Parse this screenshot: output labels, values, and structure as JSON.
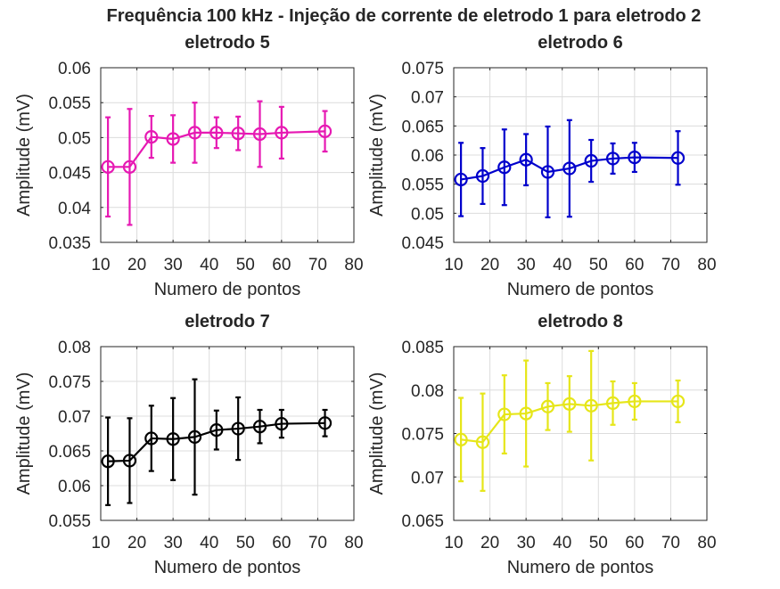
{
  "figure": {
    "title": "Frequência 100 kHz - Injeção de corrente de eletrodo 1 para eletrodo 2"
  },
  "chart_data": [
    {
      "type": "line",
      "title": "eletrodo 5",
      "xlabel": "Numero de pontos",
      "ylabel": "Amplitude (mV)",
      "xlim": [
        10,
        80
      ],
      "ylim": [
        0.035,
        0.06
      ],
      "xticks": [
        "10",
        "20",
        "30",
        "40",
        "50",
        "60",
        "70",
        "80"
      ],
      "yticks": [
        "0.035",
        "0.04",
        "0.045",
        "0.05",
        "0.055",
        "0.06"
      ],
      "grid": true,
      "color": "#e619b3",
      "x": [
        12,
        18,
        24,
        30,
        36,
        42,
        48,
        54,
        60,
        72
      ],
      "y": [
        0.0458,
        0.0458,
        0.0501,
        0.0498,
        0.0507,
        0.0507,
        0.0506,
        0.0505,
        0.0507,
        0.0509
      ],
      "err": [
        0.0071,
        0.0083,
        0.003,
        0.0034,
        0.0043,
        0.0022,
        0.0024,
        0.0047,
        0.0037,
        0.0029
      ]
    },
    {
      "type": "line",
      "title": "eletrodo 6",
      "xlabel": "Numero de pontos",
      "ylabel": "Amplitude (mV)",
      "xlim": [
        10,
        80
      ],
      "ylim": [
        0.045,
        0.075
      ],
      "xticks": [
        "10",
        "20",
        "30",
        "40",
        "50",
        "60",
        "70",
        "80"
      ],
      "yticks": [
        "0.045",
        "0.05",
        "0.055",
        "0.06",
        "0.065",
        "0.07",
        "0.075"
      ],
      "grid": true,
      "color": "#0000cc",
      "x": [
        12,
        18,
        24,
        30,
        36,
        42,
        48,
        54,
        60,
        72
      ],
      "y": [
        0.0558,
        0.0564,
        0.0579,
        0.0592,
        0.0571,
        0.0577,
        0.059,
        0.0594,
        0.0596,
        0.0595
      ],
      "err": [
        0.0063,
        0.0048,
        0.0065,
        0.0044,
        0.0078,
        0.0083,
        0.0036,
        0.0026,
        0.0025,
        0.0046
      ]
    },
    {
      "type": "line",
      "title": "eletrodo 7",
      "xlabel": "Numero de pontos",
      "ylabel": "Amplitude (mV)",
      "xlim": [
        10,
        80
      ],
      "ylim": [
        0.055,
        0.08
      ],
      "xticks": [
        "10",
        "20",
        "30",
        "40",
        "50",
        "60",
        "70",
        "80"
      ],
      "yticks": [
        "0.055",
        "0.06",
        "0.065",
        "0.07",
        "0.075",
        "0.08"
      ],
      "grid": true,
      "color": "#000000",
      "x": [
        12,
        18,
        24,
        30,
        36,
        42,
        48,
        54,
        60,
        72
      ],
      "y": [
        0.0635,
        0.0636,
        0.0668,
        0.0667,
        0.067,
        0.068,
        0.0682,
        0.0685,
        0.0689,
        0.069
      ],
      "err": [
        0.0063,
        0.0061,
        0.0047,
        0.0059,
        0.0083,
        0.0028,
        0.0045,
        0.0024,
        0.002,
        0.0019
      ]
    },
    {
      "type": "line",
      "title": "eletrodo 8",
      "xlabel": "Numero de pontos",
      "ylabel": "Amplitude (mV)",
      "xlim": [
        10,
        80
      ],
      "ylim": [
        0.065,
        0.085
      ],
      "xticks": [
        "10",
        "20",
        "30",
        "40",
        "50",
        "60",
        "70",
        "80"
      ],
      "yticks": [
        "0.065",
        "0.07",
        "0.075",
        "0.08",
        "0.085"
      ],
      "grid": true,
      "color": "#e6e619",
      "x": [
        12,
        18,
        24,
        30,
        36,
        42,
        48,
        54,
        60,
        72
      ],
      "y": [
        0.0743,
        0.074,
        0.0772,
        0.0773,
        0.0781,
        0.0784,
        0.0782,
        0.0785,
        0.0787,
        0.0787
      ],
      "err": [
        0.0048,
        0.0056,
        0.0045,
        0.0061,
        0.0027,
        0.0032,
        0.0063,
        0.0025,
        0.0021,
        0.0024
      ]
    }
  ]
}
